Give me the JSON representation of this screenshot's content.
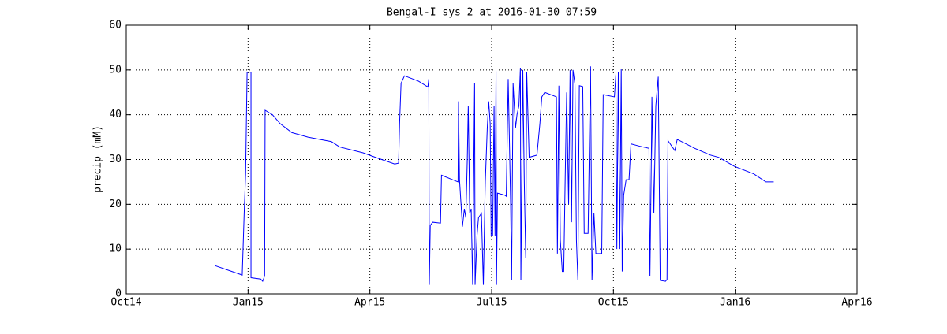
{
  "chart_data": {
    "type": "line",
    "title": "Bengal-I sys 2 at 2016-01-30 07:59",
    "y_label": "precip (mM)",
    "color": "#0000ff",
    "grid": true,
    "xlim": [
      2014.75,
      2016.25
    ],
    "xticks": [
      {
        "value": 2014.75,
        "label": "Oct14"
      },
      {
        "value": 2015.0,
        "label": "Jan15"
      },
      {
        "value": 2015.25,
        "label": "Apr15"
      },
      {
        "value": 2015.5,
        "label": "Jul15"
      },
      {
        "value": 2015.75,
        "label": "Oct15"
      },
      {
        "value": 2016.0,
        "label": "Jan16"
      },
      {
        "value": 2016.25,
        "label": "Apr16"
      }
    ],
    "ylim": [
      0,
      60
    ],
    "yticks": [
      0,
      10,
      20,
      30,
      40,
      50,
      60
    ],
    "x": [
      2014.932,
      2014.988,
      2014.992,
      2014.995,
      2014.998,
      2015.006,
      2015.006,
      2015.026,
      2015.03,
      2015.034,
      2015.035,
      2015.05,
      2015.066,
      2015.09,
      2015.123,
      2015.171,
      2015.188,
      2015.236,
      2015.269,
      2015.301,
      2015.309,
      2015.311,
      2015.314,
      2015.321,
      2015.35,
      2015.369,
      2015.371,
      2015.372,
      2015.374,
      2015.379,
      2015.395,
      2015.397,
      2015.431,
      2015.432,
      2015.434,
      2015.44,
      2015.444,
      2015.447,
      2015.45,
      2015.452,
      2015.455,
      2015.458,
      2015.461,
      2015.465,
      2015.466,
      2015.47,
      2015.473,
      2015.479,
      2015.483,
      2015.486,
      2015.487,
      2015.491,
      2015.494,
      2015.497,
      2015.499,
      2015.502,
      2015.505,
      2015.507,
      2015.509,
      2015.51,
      2015.512,
      2015.528,
      2015.53,
      2015.534,
      2015.539,
      2015.541,
      2015.544,
      2015.549,
      2015.552,
      2015.556,
      2015.559,
      2015.56,
      2015.564,
      2015.567,
      2015.57,
      2015.572,
      2015.577,
      2015.593,
      2015.599,
      2015.603,
      2015.609,
      2015.633,
      2015.635,
      2015.638,
      2015.641,
      2015.645,
      2015.648,
      2015.651,
      2015.654,
      2015.658,
      2015.661,
      2015.664,
      2015.667,
      2015.671,
      2015.674,
      2015.677,
      2015.68,
      2015.687,
      2015.69,
      2015.698,
      2015.703,
      2015.706,
      2015.71,
      2015.714,
      2015.726,
      2015.729,
      2015.752,
      2015.755,
      2015.757,
      2015.76,
      2015.763,
      2015.766,
      2015.768,
      2015.771,
      2015.776,
      2015.782,
      2015.786,
      2015.803,
      2015.823,
      2015.825,
      2015.828,
      2015.829,
      2015.833,
      2015.837,
      2015.842,
      2015.846,
      2015.857,
      2015.86,
      2015.862,
      2015.876,
      2015.881,
      2015.917,
      2015.949,
      2015.966,
      2015.998,
      2016.038,
      2016.063,
      2016.079
    ],
    "values": [
      6.3,
      4.2,
      18,
      27,
      49.5,
      49.5,
      3.6,
      3.3,
      2.8,
      4,
      41,
      40,
      38,
      36,
      35,
      34,
      32.8,
      31.5,
      30.2,
      29,
      29.2,
      38,
      47,
      48.7,
      47.5,
      46.2,
      48,
      2,
      15.3,
      16,
      15.8,
      26.5,
      25,
      43,
      25.5,
      15,
      19,
      17,
      30,
      42,
      18,
      19,
      2,
      47,
      2,
      13,
      17,
      18,
      2,
      20,
      25,
      37,
      43,
      38,
      13,
      13,
      42,
      13,
      49.7,
      2,
      22.5,
      22,
      21.8,
      48,
      20,
      3,
      47,
      37,
      40,
      42,
      50.5,
      3,
      50,
      25,
      8,
      49.5,
      30.5,
      31,
      38,
      44,
      45,
      44,
      9,
      46.5,
      12,
      5,
      5,
      26,
      45,
      20,
      50,
      16,
      50,
      46.8,
      12,
      3,
      46.5,
      46.3,
      13.5,
      13.5,
      50.8,
      3,
      18,
      9,
      9,
      44.5,
      44,
      49,
      10,
      49.5,
      10,
      50.3,
      5,
      22,
      25.5,
      25.5,
      33.5,
      33,
      32.5,
      4,
      32,
      44,
      18,
      42,
      48.5,
      3,
      2.8,
      3.2,
      34.2,
      32,
      34.5,
      32.5,
      31,
      30.5,
      28.5,
      26.8,
      25,
      25
    ]
  }
}
